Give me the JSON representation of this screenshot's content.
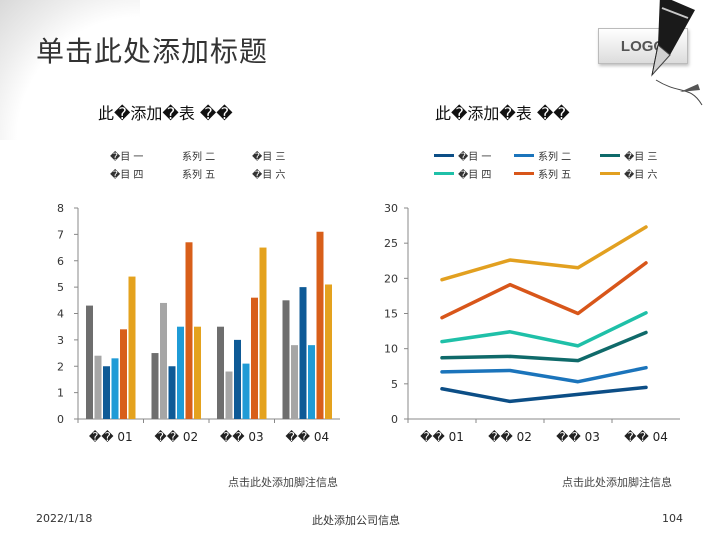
{
  "slide": {
    "title": "单击此处添加标题",
    "logo": "LOGO",
    "footer_date": "2022/1/18",
    "footer_company": "此处添加公司信息",
    "page_number": "104"
  },
  "bar_chart": {
    "heading": "此�添加�表 ��",
    "footnote": "点击此处添加脚注信息",
    "legend": [
      "�目 一",
      "系列 二",
      "�目 三",
      "�目 四",
      "系列 五",
      "�目 六"
    ]
  },
  "line_chart": {
    "heading": "此�添加�表 ��",
    "footnote": "点击此处添加脚注信息",
    "legend": [
      "�目 一",
      "系列 二",
      "�目 三",
      "�目 四",
      "系列 五",
      "�目 六"
    ]
  },
  "chart_data": [
    {
      "type": "bar",
      "title": "此�添加�表 ��",
      "categories": [
        "�� 01",
        "�� 02",
        "�� 03",
        "�� 04"
      ],
      "ylim": [
        0,
        8
      ],
      "yticks": [
        0,
        1,
        2,
        3,
        4,
        5,
        6,
        7,
        8
      ],
      "series": [
        {
          "name": "�目 一",
          "color": "#6e6e6e",
          "values": [
            4.3,
            2.5,
            3.5,
            4.5
          ]
        },
        {
          "name": "系列 二",
          "color": "#a6a6a6",
          "values": [
            2.4,
            4.4,
            1.8,
            2.8
          ]
        },
        {
          "name": "�目 三",
          "color": "#0e5a96",
          "values": [
            2.0,
            2.0,
            3.0,
            5.0
          ]
        },
        {
          "name": "�目 四",
          "color": "#1f9bd6",
          "values": [
            2.3,
            3.5,
            2.1,
            2.8
          ]
        },
        {
          "name": "系列 五",
          "color": "#d85f1a",
          "values": [
            3.4,
            6.7,
            4.6,
            7.1
          ]
        },
        {
          "name": "�目 六",
          "color": "#e4a21e",
          "values": [
            5.4,
            3.5,
            6.5,
            5.1
          ]
        }
      ]
    },
    {
      "type": "line",
      "title": "此�添加�表 ��",
      "categories": [
        "�� 01",
        "�� 02",
        "�� 03",
        "�� 04"
      ],
      "ylim": [
        0,
        30
      ],
      "yticks": [
        0,
        5,
        10,
        15,
        20,
        25,
        30
      ],
      "series": [
        {
          "name": "�目 一",
          "color": "#0c4e86",
          "values": [
            4.3,
            2.5,
            3.5,
            4.5
          ]
        },
        {
          "name": "系列 二",
          "color": "#1b74bb",
          "values": [
            6.7,
            6.9,
            5.3,
            7.3
          ]
        },
        {
          "name": "�目 三",
          "color": "#0f6a6a",
          "values": [
            8.7,
            8.9,
            8.3,
            12.3
          ]
        },
        {
          "name": "�目 四",
          "color": "#1fc0a8",
          "values": [
            11.0,
            12.4,
            10.4,
            15.1
          ]
        },
        {
          "name": "系列 五",
          "color": "#d8561a",
          "values": [
            14.4,
            19.1,
            15.0,
            22.2
          ]
        },
        {
          "name": "�目 六",
          "color": "#e2a020",
          "values": [
            19.8,
            22.6,
            21.5,
            27.3
          ]
        }
      ]
    }
  ]
}
